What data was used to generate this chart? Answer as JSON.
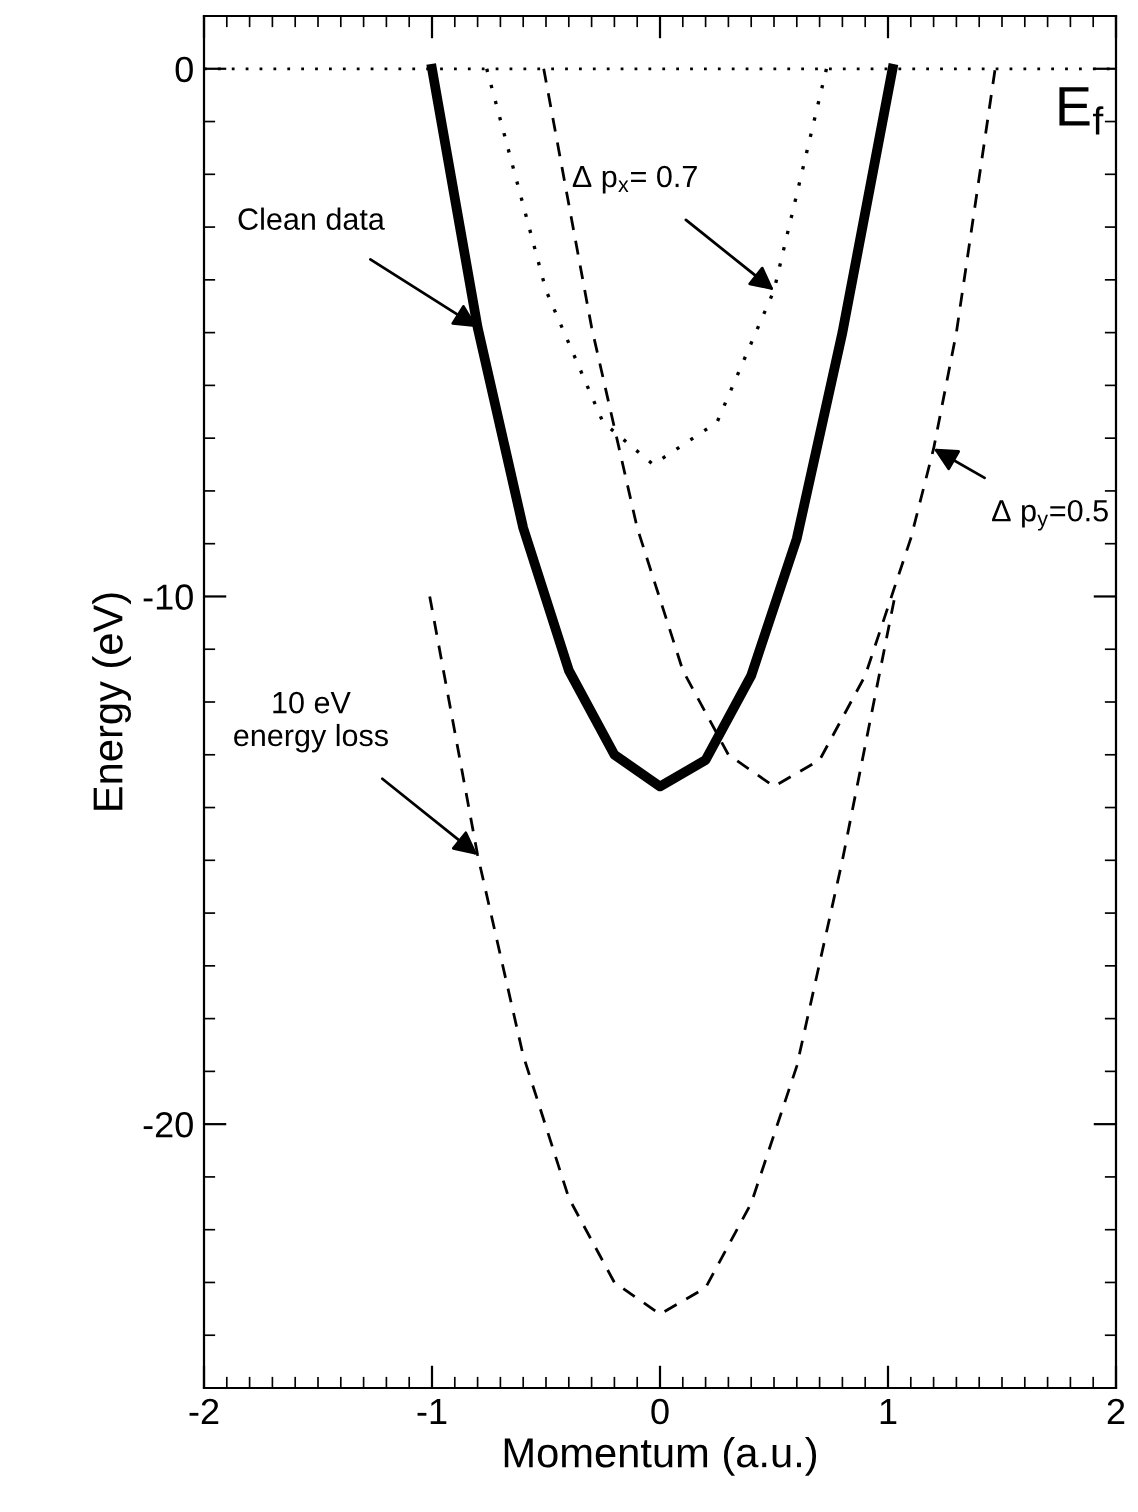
{
  "chart_data": {
    "type": "line",
    "xlabel": "Momentum (a.u.)",
    "ylabel": "Energy (eV)",
    "xlim": [
      -2,
      2
    ],
    "ylim": [
      -25,
      1
    ],
    "xticks": [
      -2,
      -1,
      0,
      1,
      2
    ],
    "yticks": [
      0,
      -10,
      -20
    ],
    "grid": false,
    "legend": false,
    "series": [
      {
        "color": "#000000",
        "line_style": "solid",
        "x": [
          -1,
          -0.8,
          -0.6,
          -0.4,
          -0.2,
          0,
          0.2,
          0.4,
          0.6,
          0.8,
          1.02
        ],
        "values": [
          0,
          -4.9,
          -8.7,
          -11.4,
          -13.0,
          -13.6,
          -13.1,
          -11.5,
          -8.9,
          -5.0,
          0
        ]
      },
      {
        "color": "#000000",
        "line_style": "dotted",
        "x": [
          -0.76,
          -0.5,
          -0.25,
          -0.03,
          0.25,
          0.5,
          0.73
        ],
        "values": [
          0,
          -4.2,
          -6.7,
          -7.5,
          -6.7,
          -4.2,
          0
        ]
      },
      {
        "color": "#000000",
        "line_style": "dashed",
        "x": [
          -0.51,
          -0.3,
          -0.1,
          0.1,
          0.3,
          0.5,
          0.7,
          0.9,
          1.1,
          1.2,
          1.3,
          1.47
        ],
        "values": [
          0,
          -4.9,
          -8.7,
          -11.4,
          -13.0,
          -13.6,
          -13.1,
          -11.5,
          -8.9,
          -7.2,
          -5.0,
          0
        ]
      },
      {
        "color": "#000000",
        "line_style": "dashed",
        "x": [
          -1.01,
          -0.8,
          -0.6,
          -0.4,
          -0.2,
          0,
          0.2,
          0.4,
          0.6,
          0.8,
          1.03
        ],
        "values": [
          -10,
          -14.9,
          -18.7,
          -21.4,
          -23.0,
          -23.6,
          -23.1,
          -21.5,
          -18.9,
          -15.0,
          -10
        ]
      }
    ],
    "ref_lines": [
      {
        "axis": "y",
        "value": 0,
        "label": "E$_{f}$",
        "color": "#000000",
        "line_style": "dotted"
      }
    ],
    "annotations": [
      {
        "text": "Clean data",
        "x": -0.8,
        "y": -4.9
      },
      {
        "text": "Δ p$_{x}$= 0.7",
        "x": 0.5,
        "y": -4.2
      },
      {
        "text": "Δ p$_{y}$=0.5",
        "x": 1.2,
        "y": -7.2
      },
      {
        "text": "10 eV\nenergy loss",
        "x": -0.8,
        "y": -14.9
      }
    ]
  }
}
